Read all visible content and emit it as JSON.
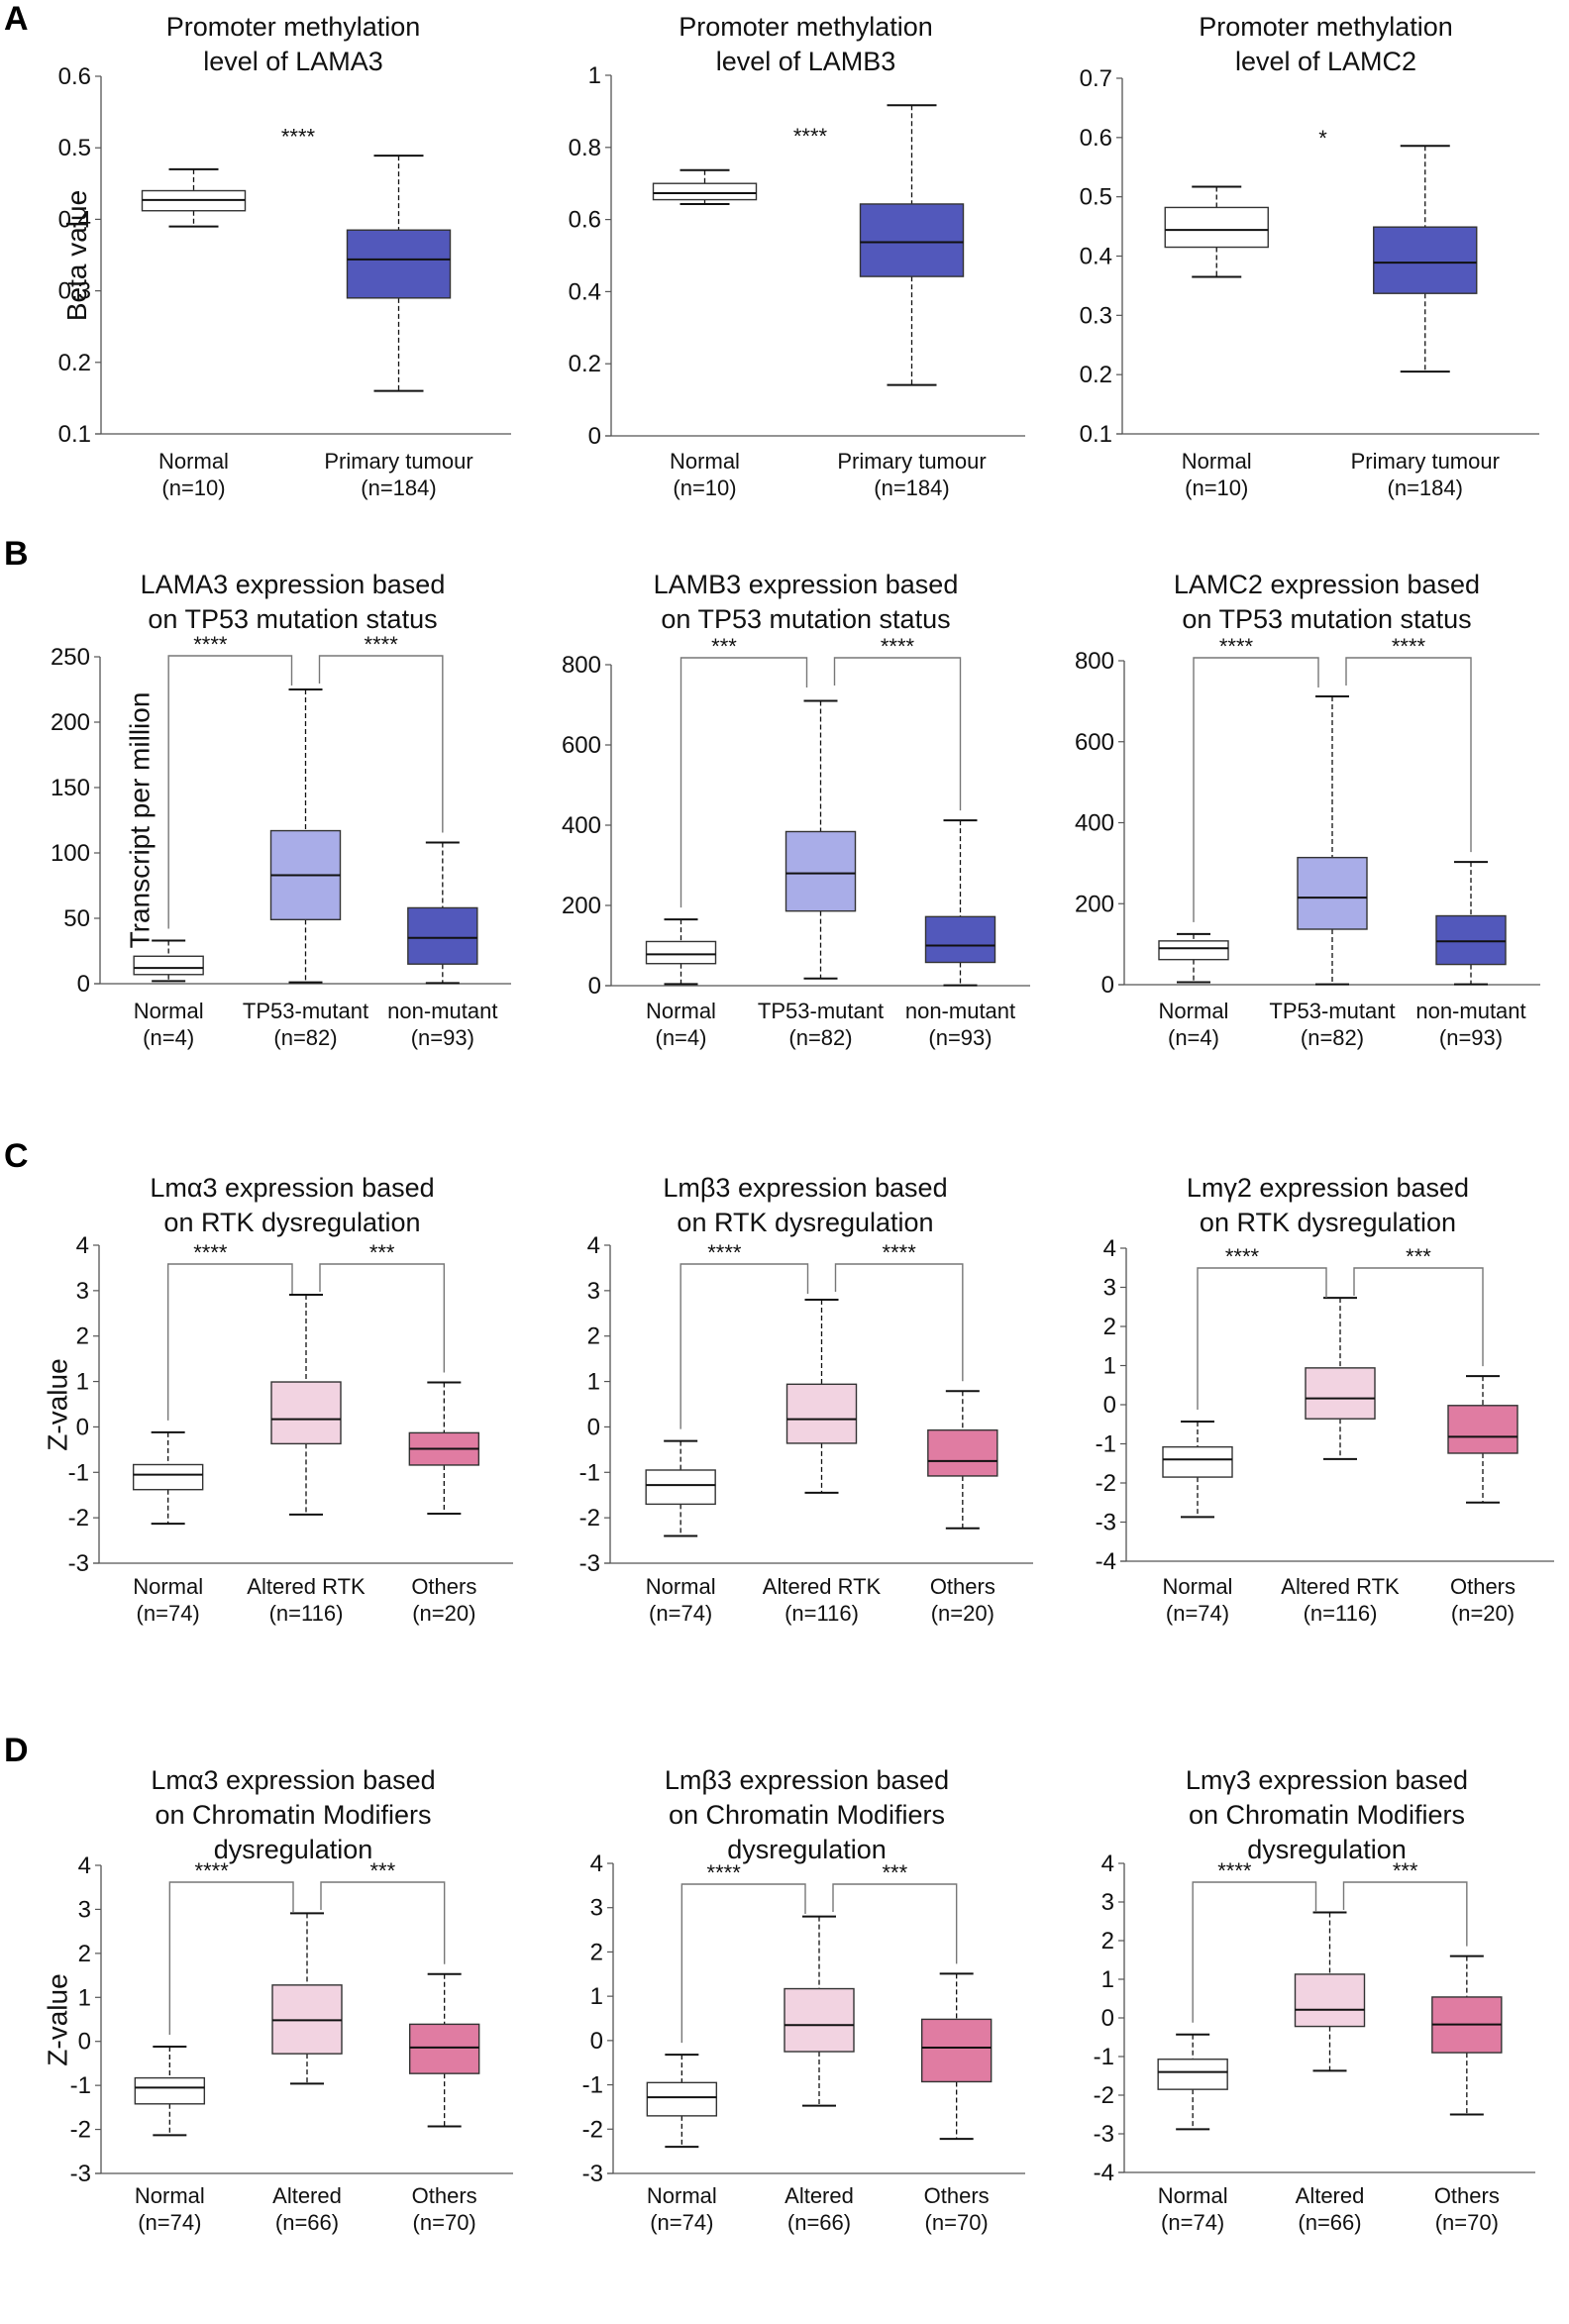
{
  "figure": {
    "panels": [
      {
        "letter": "A"
      },
      {
        "letter": "B"
      },
      {
        "letter": "C"
      },
      {
        "letter": "D"
      }
    ]
  },
  "colors": {
    "normal_fill": "#ffffff",
    "tumour_fill": "#5258bb",
    "tp53_mutant_fill": "#a9ade8",
    "non_mutant_fill": "#5258bb",
    "altered_fill": "#f2d3e1",
    "others_fill": "#e07ca2",
    "line": "#111111",
    "axis": "#555555"
  },
  "chart_data": [
    {
      "id": "A1",
      "panel": "A",
      "type": "box",
      "title": "Promoter methylation\nlevel of LAMA3",
      "ylabel": "Beta value",
      "xlabel": "",
      "ylim": [
        0.1,
        0.6
      ],
      "yticks": [
        "0.1",
        "0.2",
        "0.3",
        "0.4",
        "0.5",
        "0.6"
      ],
      "categories": [
        {
          "name": "Normal",
          "n": "(n=10)",
          "fill": "normal",
          "min": 0.39,
          "q1": 0.412,
          "median": 0.427,
          "q3": 0.44,
          "max": 0.47
        },
        {
          "name": "Primary tumour",
          "n": "(n=184)",
          "fill": "tumour",
          "min": 0.16,
          "q1": 0.29,
          "median": 0.344,
          "q3": 0.385,
          "max": 0.489
        }
      ],
      "significance": [
        {
          "label": "****",
          "between": [
            0,
            1
          ],
          "bracket": false
        }
      ]
    },
    {
      "id": "A2",
      "panel": "A",
      "type": "box",
      "title": "Promoter methylation\nlevel of LAMB3",
      "ylabel": "",
      "xlabel": "",
      "ylim": [
        0,
        1
      ],
      "yticks": [
        "0",
        "0.2",
        "0.4",
        "0.6",
        "0.8",
        "1"
      ],
      "categories": [
        {
          "name": "Normal",
          "n": "(n=10)",
          "fill": "normal",
          "min": 0.643,
          "q1": 0.655,
          "median": 0.673,
          "q3": 0.7,
          "max": 0.737
        },
        {
          "name": "Primary tumour",
          "n": "(n=184)",
          "fill": "tumour",
          "min": 0.141,
          "q1": 0.442,
          "median": 0.537,
          "q3": 0.643,
          "max": 0.917
        }
      ],
      "significance": [
        {
          "label": "****",
          "between": [
            0,
            1
          ],
          "bracket": false
        }
      ]
    },
    {
      "id": "A3",
      "panel": "A",
      "type": "box",
      "title": "Promoter methylation\nlevel of LAMC2",
      "ylabel": "",
      "xlabel": "",
      "ylim": [
        0.1,
        0.7
      ],
      "yticks": [
        "0.1",
        "0.2",
        "0.3",
        "0.4",
        "0.5",
        "0.6",
        "0.7"
      ],
      "categories": [
        {
          "name": "Normal",
          "n": "(n=10)",
          "fill": "normal",
          "min": 0.365,
          "q1": 0.415,
          "median": 0.444,
          "q3": 0.482,
          "max": 0.517
        },
        {
          "name": "Primary tumour",
          "n": "(n=184)",
          "fill": "tumour",
          "min": 0.205,
          "q1": 0.337,
          "median": 0.389,
          "q3": 0.449,
          "max": 0.586
        }
      ],
      "significance": [
        {
          "label": "*",
          "between": [
            0,
            1
          ],
          "bracket": false
        }
      ]
    },
    {
      "id": "B1",
      "panel": "B",
      "type": "box",
      "title": "LAMA3 expression based\non TP53 mutation status",
      "ylabel": "Transcript per million",
      "xlabel": "",
      "ylim": [
        0,
        250
      ],
      "yticks": [
        "0",
        "50",
        "100",
        "150",
        "200",
        "250"
      ],
      "categories": [
        {
          "name": "Normal",
          "n": "(n=4)",
          "fill": "normal",
          "min": 2,
          "q1": 7,
          "median": 12,
          "q3": 21,
          "max": 33
        },
        {
          "name": "TP53-mutant",
          "n": "(n=82)",
          "fill": "tp53_mutant",
          "min": 1,
          "q1": 49,
          "median": 83,
          "q3": 117,
          "max": 225
        },
        {
          "name": "non-mutant",
          "n": "(n=93)",
          "fill": "non_mutant",
          "min": 0.5,
          "q1": 15,
          "median": 35,
          "q3": 58,
          "max": 108
        }
      ],
      "significance": [
        {
          "label": "****",
          "between": [
            0,
            1
          ],
          "bracket": true
        },
        {
          "label": "****",
          "between": [
            1,
            2
          ],
          "bracket": true
        }
      ]
    },
    {
      "id": "B2",
      "panel": "B",
      "type": "box",
      "title": "LAMB3 expression based\non TP53 mutation status",
      "ylabel": "",
      "xlabel": "",
      "ylim": [
        0,
        800
      ],
      "yticks": [
        "0",
        "200",
        "400",
        "600",
        "800"
      ],
      "categories": [
        {
          "name": "Normal",
          "n": "(n=4)",
          "fill": "normal",
          "min": 4,
          "q1": 55,
          "median": 78,
          "q3": 110,
          "max": 165
        },
        {
          "name": "TP53-mutant",
          "n": "(n=82)",
          "fill": "tp53_mutant",
          "min": 18,
          "q1": 186,
          "median": 280,
          "q3": 384,
          "max": 710
        },
        {
          "name": "non-mutant",
          "n": "(n=93)",
          "fill": "non_mutant",
          "min": 1,
          "q1": 58,
          "median": 100,
          "q3": 172,
          "max": 412
        }
      ],
      "significance": [
        {
          "label": "***",
          "between": [
            0,
            1
          ],
          "bracket": true
        },
        {
          "label": "****",
          "between": [
            1,
            2
          ],
          "bracket": true
        }
      ]
    },
    {
      "id": "B3",
      "panel": "B",
      "type": "box",
      "title": "LAMC2 expression based\non TP53 mutation status",
      "ylabel": "",
      "xlabel": "",
      "ylim": [
        0,
        800
      ],
      "yticks": [
        "0",
        "200",
        "400",
        "600",
        "800"
      ],
      "categories": [
        {
          "name": "Normal",
          "n": "(n=4)",
          "fill": "normal",
          "min": 6,
          "q1": 62,
          "median": 90,
          "q3": 108,
          "max": 125
        },
        {
          "name": "TP53-mutant",
          "n": "(n=82)",
          "fill": "tp53_mutant",
          "min": 1,
          "q1": 137,
          "median": 215,
          "q3": 314,
          "max": 712
        },
        {
          "name": "non-mutant",
          "n": "(n=93)",
          "fill": "non_mutant",
          "min": 1,
          "q1": 50,
          "median": 107,
          "q3": 170,
          "max": 303
        }
      ],
      "significance": [
        {
          "label": "****",
          "between": [
            0,
            1
          ],
          "bracket": true
        },
        {
          "label": "****",
          "between": [
            1,
            2
          ],
          "bracket": true
        }
      ]
    },
    {
      "id": "C1",
      "panel": "C",
      "type": "box",
      "title": "Lmα3 expression based\n on RTK dysregulation",
      "ylabel": "Z-value",
      "xlabel": "",
      "ylim": [
        -3,
        4
      ],
      "yticks": [
        "-3",
        "-2",
        "-1",
        "0",
        "1",
        "2",
        "3",
        "4"
      ],
      "categories": [
        {
          "name": "Normal",
          "n": "(n=74)",
          "fill": "normal",
          "min": -2.13,
          "q1": -1.38,
          "median": -1.05,
          "q3": -0.83,
          "max": -0.12
        },
        {
          "name": "Altered RTK",
          "n": "(n=116)",
          "fill": "altered",
          "min": -1.93,
          "q1": -0.37,
          "median": 0.17,
          "q3": 0.99,
          "max": 2.91
        },
        {
          "name": "Others",
          "n": "(n=20)",
          "fill": "others",
          "min": -1.91,
          "q1": -0.84,
          "median": -0.48,
          "q3": -0.13,
          "max": 0.98
        }
      ],
      "significance": [
        {
          "label": "****",
          "between": [
            0,
            1
          ],
          "bracket": true
        },
        {
          "label": "***",
          "between": [
            1,
            2
          ],
          "bracket": true
        }
      ]
    },
    {
      "id": "C2",
      "panel": "C",
      "type": "box",
      "title": "Lmβ3 expression based\n on RTK dysregulation",
      "ylabel": "",
      "xlabel": "",
      "ylim": [
        -3,
        4
      ],
      "yticks": [
        "-3",
        "-2",
        "-1",
        "0",
        "1",
        "2",
        "3",
        "4"
      ],
      "categories": [
        {
          "name": "Normal",
          "n": "(n=74)",
          "fill": "normal",
          "min": -2.4,
          "q1": -1.7,
          "median": -1.28,
          "q3": -0.95,
          "max": -0.31
        },
        {
          "name": "Altered RTK",
          "n": "(n=116)",
          "fill": "altered",
          "min": -1.45,
          "q1": -0.36,
          "median": 0.17,
          "q3": 0.94,
          "max": 2.8
        },
        {
          "name": "Others",
          "n": "(n=20)",
          "fill": "others",
          "min": -2.23,
          "q1": -1.08,
          "median": -0.75,
          "q3": -0.07,
          "max": 0.79
        }
      ],
      "significance": [
        {
          "label": "****",
          "between": [
            0,
            1
          ],
          "bracket": true
        },
        {
          "label": "****",
          "between": [
            1,
            2
          ],
          "bracket": true
        }
      ]
    },
    {
      "id": "C3",
      "panel": "C",
      "type": "box",
      "title": "Lmγ2 expression based\n on RTK dysregulation",
      "ylabel": "",
      "xlabel": "",
      "ylim": [
        -4,
        4
      ],
      "yticks": [
        "-4",
        "-3",
        "-2",
        "-1",
        "0",
        "1",
        "2",
        "3",
        "4"
      ],
      "categories": [
        {
          "name": "Normal",
          "n": "(n=74)",
          "fill": "normal",
          "min": -2.87,
          "q1": -1.85,
          "median": -1.4,
          "q3": -1.08,
          "max": -0.43
        },
        {
          "name": "Altered RTK",
          "n": "(n=116)",
          "fill": "altered",
          "min": -1.39,
          "q1": -0.36,
          "median": 0.16,
          "q3": 0.94,
          "max": 2.73
        },
        {
          "name": "Others",
          "n": "(n=20)",
          "fill": "others",
          "min": -2.5,
          "q1": -1.24,
          "median": -0.82,
          "q3": -0.02,
          "max": 0.73
        }
      ],
      "significance": [
        {
          "label": "****",
          "between": [
            0,
            1
          ],
          "bracket": true
        },
        {
          "label": "***",
          "between": [
            1,
            2
          ],
          "bracket": true
        }
      ]
    },
    {
      "id": "D1",
      "panel": "D",
      "type": "box",
      "title": "Lmα3 expression based\n on Chromatin Modifiers\n dysregulation",
      "ylabel": "Z-value",
      "xlabel": "",
      "ylim": [
        -3,
        4
      ],
      "yticks": [
        "-3",
        "-2",
        "-1",
        "0",
        "1",
        "2",
        "3",
        "4"
      ],
      "categories": [
        {
          "name": "Normal",
          "n": "(n=74)",
          "fill": "normal",
          "min": -2.13,
          "q1": -1.42,
          "median": -1.05,
          "q3": -0.83,
          "max": -0.12
        },
        {
          "name": "Altered",
          "n": "(n=66)",
          "fill": "altered",
          "min": -0.96,
          "q1": -0.28,
          "median": 0.48,
          "q3": 1.28,
          "max": 2.91
        },
        {
          "name": "Others",
          "n": "(n=70)",
          "fill": "others",
          "min": -1.93,
          "q1": -0.73,
          "median": -0.14,
          "q3": 0.39,
          "max": 1.53
        }
      ],
      "significance": [
        {
          "label": "****",
          "between": [
            0,
            1
          ],
          "bracket": true
        },
        {
          "label": "***",
          "between": [
            1,
            2
          ],
          "bracket": true
        }
      ]
    },
    {
      "id": "D2",
      "panel": "D",
      "type": "box",
      "title": "Lmβ3 expression based\n on Chromatin Modifiers\n dysregulation",
      "ylabel": "",
      "xlabel": "",
      "ylim": [
        -3,
        4
      ],
      "yticks": [
        "-3",
        "-2",
        "-1",
        "0",
        "1",
        "2",
        "3",
        "4"
      ],
      "categories": [
        {
          "name": "Normal",
          "n": "(n=74)",
          "fill": "normal",
          "min": -2.4,
          "q1": -1.7,
          "median": -1.28,
          "q3": -0.95,
          "max": -0.32
        },
        {
          "name": "Altered",
          "n": "(n=66)",
          "fill": "altered",
          "min": -1.47,
          "q1": -0.25,
          "median": 0.35,
          "q3": 1.17,
          "max": 2.8
        },
        {
          "name": "Others",
          "n": "(n=70)",
          "fill": "others",
          "min": -2.22,
          "q1": -0.93,
          "median": -0.16,
          "q3": 0.48,
          "max": 1.51
        }
      ],
      "significance": [
        {
          "label": "****",
          "between": [
            0,
            1
          ],
          "bracket": true
        },
        {
          "label": "***",
          "between": [
            1,
            2
          ],
          "bracket": true
        }
      ]
    },
    {
      "id": "D3",
      "panel": "D",
      "type": "box",
      "title": "Lmγ3 expression based\n on Chromatin Modifiers\n dysregulation",
      "ylabel": "",
      "xlabel": "",
      "ylim": [
        -4,
        4
      ],
      "yticks": [
        "-4",
        "-3",
        "-2",
        "-1",
        "0",
        "1",
        "2",
        "3",
        "4"
      ],
      "categories": [
        {
          "name": "Normal",
          "n": "(n=74)",
          "fill": "normal",
          "min": -2.88,
          "q1": -1.85,
          "median": -1.4,
          "q3": -1.07,
          "max": -0.43
        },
        {
          "name": "Altered",
          "n": "(n=66)",
          "fill": "altered",
          "min": -1.37,
          "q1": -0.22,
          "median": 0.21,
          "q3": 1.13,
          "max": 2.73
        },
        {
          "name": "Others",
          "n": "(n=70)",
          "fill": "others",
          "min": -2.5,
          "q1": -0.9,
          "median": -0.17,
          "q3": 0.54,
          "max": 1.6
        }
      ],
      "significance": [
        {
          "label": "****",
          "between": [
            0,
            1
          ],
          "bracket": true
        },
        {
          "label": "***",
          "between": [
            1,
            2
          ],
          "bracket": true
        }
      ]
    }
  ]
}
